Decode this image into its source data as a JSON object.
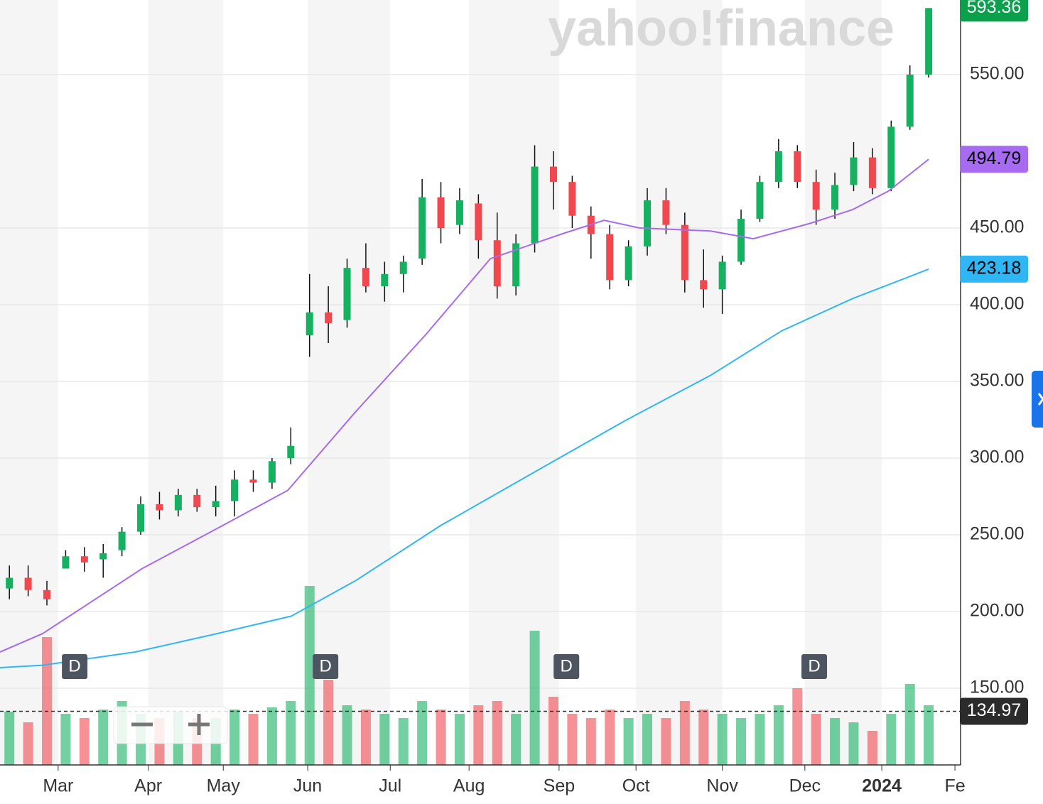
{
  "chart_data": {
    "type": "candlestick",
    "watermark": "yahoo!finance",
    "xlim": [
      -0.5,
      50.7
    ],
    "xticks": [
      {
        "value": 2.6,
        "label": "Mar"
      },
      {
        "value": 7.4,
        "label": "Apr"
      },
      {
        "value": 11.4,
        "label": "May"
      },
      {
        "value": 15.9,
        "label": "Jun"
      },
      {
        "value": 20.3,
        "label": "Jul"
      },
      {
        "value": 24.5,
        "label": "Aug"
      },
      {
        "value": 29.3,
        "label": "Sep"
      },
      {
        "value": 33.4,
        "label": "Oct"
      },
      {
        "value": 38.0,
        "label": "Nov"
      },
      {
        "value": 42.4,
        "label": "Dec"
      },
      {
        "value": 46.5,
        "label": "2024"
      },
      {
        "value": 50.4,
        "label": "Fe"
      }
    ],
    "ylim": [
      100,
      598.6
    ],
    "yticks": [
      {
        "value": 150,
        "label": "150.00"
      },
      {
        "value": 200,
        "label": "200.00"
      },
      {
        "value": 250,
        "label": "250.00"
      },
      {
        "value": 300,
        "label": "300.00"
      },
      {
        "value": 350,
        "label": "350.00"
      },
      {
        "value": 400,
        "label": "400.00"
      },
      {
        "value": 450,
        "label": "450.00"
      },
      {
        "value": 550,
        "label": "550.00"
      }
    ],
    "grid": true,
    "up_color": "#15b160",
    "down_color": "#f0484e",
    "series": [
      {
        "x": [
          0,
          1,
          2,
          3,
          4,
          5,
          6,
          7,
          8,
          9,
          10,
          11,
          12,
          13,
          14,
          15,
          16,
          17,
          18,
          19,
          20,
          21,
          22,
          23,
          24,
          25,
          26,
          27,
          28,
          29,
          30,
          31,
          32,
          33,
          34,
          35,
          36,
          37,
          38,
          39,
          40,
          41,
          42,
          43,
          44,
          45,
          46,
          47,
          48,
          49
        ],
        "values": [
          [
            215,
            230,
            208,
            222
          ],
          [
            222,
            230,
            210,
            214
          ],
          [
            214,
            220,
            204,
            208
          ],
          [
            228,
            240,
            228,
            236
          ],
          [
            236,
            242,
            226,
            232
          ],
          [
            234,
            244,
            222,
            238
          ],
          [
            240,
            255,
            236,
            252
          ],
          [
            252,
            275,
            250,
            270
          ],
          [
            270,
            278,
            260,
            266
          ],
          [
            266,
            280,
            262,
            276
          ],
          [
            276,
            280,
            265,
            268
          ],
          [
            268,
            282,
            262,
            272
          ],
          [
            272,
            292,
            262,
            286
          ],
          [
            286,
            292,
            278,
            284
          ],
          [
            284,
            300,
            280,
            298
          ],
          [
            300,
            320,
            296,
            308
          ],
          [
            380,
            420,
            366,
            395
          ],
          [
            395,
            412,
            375,
            388
          ],
          [
            390,
            430,
            385,
            424
          ],
          [
            424,
            440,
            408,
            412
          ],
          [
            412,
            428,
            402,
            420
          ],
          [
            420,
            432,
            408,
            428
          ],
          [
            430,
            482,
            426,
            470
          ],
          [
            470,
            480,
            440,
            450
          ],
          [
            452,
            476,
            446,
            468
          ],
          [
            466,
            472,
            430,
            442
          ],
          [
            442,
            460,
            404,
            412
          ],
          [
            412,
            446,
            406,
            440
          ],
          [
            440,
            504,
            434,
            490
          ],
          [
            490,
            500,
            462,
            480
          ],
          [
            480,
            484,
            450,
            458
          ],
          [
            458,
            464,
            430,
            446
          ],
          [
            446,
            452,
            410,
            416
          ],
          [
            416,
            442,
            412,
            438
          ],
          [
            438,
            476,
            432,
            468
          ],
          [
            468,
            476,
            446,
            452
          ],
          [
            452,
            460,
            408,
            416
          ],
          [
            416,
            436,
            398,
            410
          ],
          [
            410,
            432,
            394,
            428
          ],
          [
            428,
            462,
            426,
            456
          ],
          [
            456,
            484,
            454,
            480
          ],
          [
            480,
            508,
            476,
            500
          ],
          [
            500,
            504,
            476,
            480
          ],
          [
            480,
            488,
            452,
            462
          ],
          [
            462,
            486,
            456,
            478
          ],
          [
            478,
            506,
            474,
            496
          ],
          [
            496,
            502,
            472,
            476
          ],
          [
            476,
            520,
            474,
            516
          ],
          [
            516,
            556,
            514,
            550
          ],
          [
            550,
            593.36,
            548,
            593.36
          ]
        ]
      },
      {
        "type": "line",
        "color": "#a66bf0",
        "x": [
          -0.5,
          1.77,
          7.08,
          11.36,
          14.84,
          18.44,
          22.23,
          25.64,
          29.42,
          31.7,
          33.59,
          37.38,
          39.65,
          42.68,
          44.95,
          46.85,
          49
        ],
        "values": [
          173.6,
          185.6,
          228,
          256,
          279,
          330,
          381,
          430,
          446,
          455,
          450,
          448,
          443,
          453,
          462,
          474,
          494.79
        ]
      },
      {
        "type": "line",
        "color": "#2fb6f5",
        "x": [
          -0.5,
          1.77,
          6.7,
          10.86,
          15.03,
          18.44,
          22.98,
          28.29,
          32.83,
          37.38,
          41.17,
          44.95,
          49
        ],
        "values": [
          163.4,
          165,
          173.6,
          185,
          197,
          220,
          256,
          293,
          324.5,
          354,
          383,
          404,
          423.18
        ]
      }
    ],
    "volume": {
      "ylim": [
        0,
        100
      ],
      "values": [
        25,
        20,
        60,
        24,
        22,
        26,
        30,
        24,
        22,
        25,
        22,
        22,
        26,
        24,
        27,
        30,
        84,
        40,
        28,
        26,
        24,
        22,
        30,
        26,
        24,
        28,
        30,
        24,
        63,
        32,
        24,
        22,
        26,
        22,
        24,
        22,
        30,
        26,
        24,
        22,
        24,
        28,
        36,
        24,
        22,
        20,
        16,
        24,
        38,
        28
      ]
    },
    "tags": [
      {
        "value": 593.36,
        "color": "#0aa04c",
        "text_color": "#ffffff"
      },
      {
        "value": 494.79,
        "color": "#a66bf0",
        "text_color": "#000000"
      },
      {
        "value": 423.18,
        "color": "#2fb6f5",
        "text_color": "#000000"
      },
      {
        "value": 134.97,
        "color": "#2b2b2b",
        "text_color": "#ffffff",
        "dashed": true
      }
    ],
    "events": [
      {
        "x": 3.48,
        "label": "D"
      },
      {
        "x": 16.85,
        "label": "D"
      },
      {
        "x": 29.69,
        "label": "D"
      },
      {
        "x": 42.9,
        "label": "D"
      }
    ]
  }
}
